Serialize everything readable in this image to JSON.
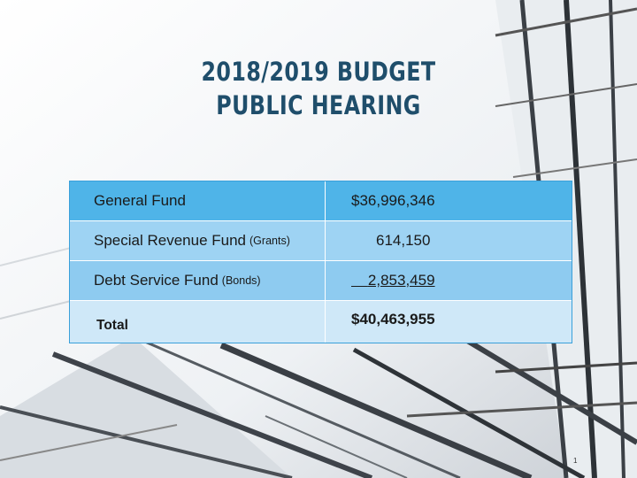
{
  "slide": {
    "title_line1": "2018/2019 BUDGET",
    "title_line2": "PUBLIC HEARING",
    "page_number": "1"
  },
  "budget_table": {
    "rows": [
      {
        "label": "General Fund",
        "note": "",
        "amount": "$36,996,346"
      },
      {
        "label": "Special Revenue Fund",
        "note": "(Grants)",
        "amount": "614,150"
      },
      {
        "label": "Debt Service Fund",
        "note": "(Bonds)",
        "amount": "2,853,459"
      }
    ],
    "total": {
      "label": "Total",
      "amount": "$40,463,955"
    }
  },
  "colors": {
    "title": "#1f4e6b",
    "row_dark": "#4fb4e8",
    "row_light": "#9ed3f3",
    "row_total": "#cfe8f8"
  }
}
